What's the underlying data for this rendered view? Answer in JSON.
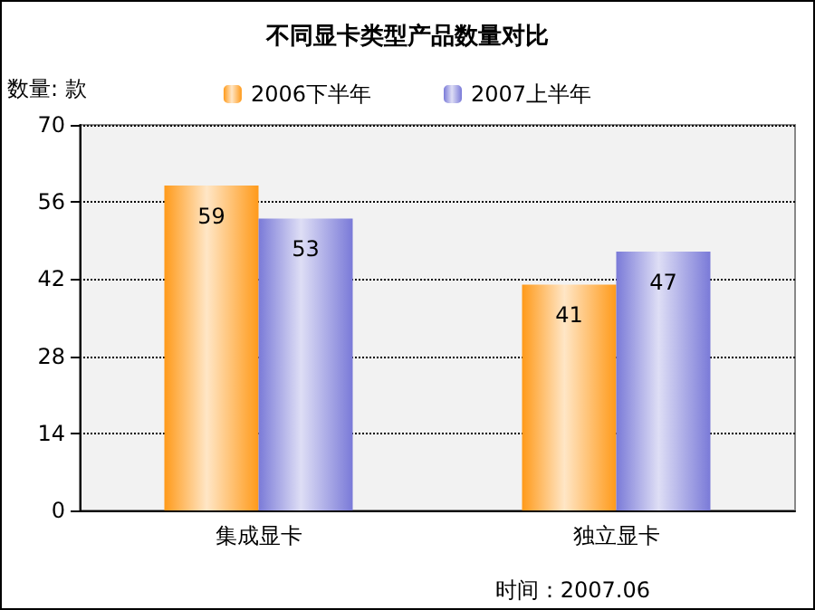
{
  "chart_data": {
    "type": "bar",
    "title": "不同显卡类型产品数量对比",
    "ylabel": "数量: 款",
    "categories": [
      "集成显卡",
      "独立显卡"
    ],
    "series": [
      {
        "name": "2006下半年",
        "color": "#ff9a1a",
        "values": [
          59,
          41
        ]
      },
      {
        "name": "2007上半年",
        "color": "#7a7ad8",
        "values": [
          53,
          47
        ]
      }
    ],
    "ylim": [
      0,
      70
    ],
    "yticks": [
      0,
      14,
      28,
      42,
      56,
      70
    ],
    "grid": "y",
    "legend": "top",
    "data_labels": true,
    "annotations": [
      "时间：2007.06"
    ]
  }
}
